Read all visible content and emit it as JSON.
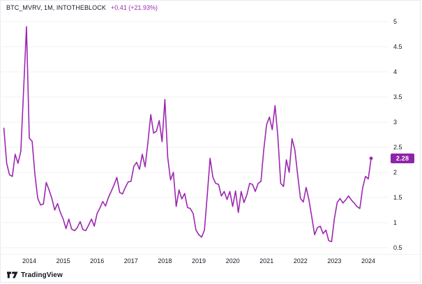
{
  "header": {
    "symbol_title": "BTC_MVRV, 1M, INTOTHEBLOCK",
    "change_text": "+0.41 (+21.93%)"
  },
  "footer": {
    "brand": "TradingView"
  },
  "colors": {
    "line": "#9c27b0",
    "badge_bg": "#8e24aa",
    "change_text": "#9c27b0",
    "axis_text": "#131722",
    "grid": "#f0f1f4",
    "border": "#e8eaef"
  },
  "y_axis": {
    "tick_labels": [
      "5",
      "4.5",
      "4",
      "3.5",
      "3",
      "2.5",
      "2",
      "1.5",
      "1",
      "0.5"
    ],
    "tick_values": [
      5,
      4.5,
      4,
      3.5,
      3,
      2.5,
      2,
      1.5,
      1,
      0.5
    ],
    "last_price_label": "2.28"
  },
  "x_axis": {
    "tick_labels": [
      "2014",
      "2015",
      "2016",
      "2017",
      "2018",
      "2019",
      "2020",
      "2021",
      "2022",
      "2023",
      "2024"
    ],
    "tick_years": [
      2014,
      2015,
      2016,
      2017,
      2018,
      2019,
      2020,
      2021,
      2022,
      2023,
      2024
    ]
  },
  "chart_data": {
    "type": "line",
    "title": "BTC_MVRV, 1M, INTOTHEBLOCK",
    "series_name": "BTC MVRV ratio, monthly",
    "x_start": "2013-04",
    "x_interval": "1 month",
    "ylabel": "MVRV ratio",
    "ylim": [
      0.5,
      5
    ],
    "grid": "horizontal-only",
    "legend_position": "none",
    "values": [
      2.88,
      2.18,
      1.95,
      1.92,
      2.36,
      2.18,
      2.42,
      3.65,
      4.9,
      2.68,
      2.62,
      1.95,
      1.48,
      1.35,
      1.37,
      1.8,
      1.65,
      1.48,
      1.25,
      1.38,
      1.2,
      1.07,
      0.88,
      1.07,
      0.87,
      0.84,
      0.9,
      1.02,
      0.86,
      0.84,
      0.95,
      1.07,
      0.93,
      1.18,
      1.29,
      1.42,
      1.33,
      1.5,
      1.62,
      1.75,
      1.9,
      1.6,
      1.57,
      1.7,
      1.81,
      1.82,
      2.12,
      2.2,
      2.06,
      2.36,
      2.11,
      2.6,
      3.15,
      2.78,
      2.82,
      3.03,
      2.61,
      3.45,
      2.3,
      1.85,
      2.0,
      1.32,
      1.65,
      1.47,
      1.58,
      1.3,
      1.28,
      1.18,
      0.85,
      0.76,
      0.71,
      0.85,
      1.55,
      2.28,
      1.9,
      1.78,
      1.76,
      1.53,
      1.62,
      1.46,
      1.62,
      1.32,
      1.63,
      1.2,
      1.62,
      1.4,
      1.55,
      1.78,
      1.76,
      1.62,
      1.78,
      1.82,
      2.45,
      2.95,
      3.1,
      2.85,
      3.33,
      2.7,
      1.78,
      1.72,
      2.25,
      2.0,
      2.67,
      2.45,
      1.95,
      1.48,
      1.41,
      1.7,
      1.45,
      1.11,
      0.76,
      0.9,
      0.93,
      0.78,
      0.85,
      0.64,
      0.62,
      1.08,
      1.4,
      1.48,
      1.39,
      1.45,
      1.53,
      1.45,
      1.39,
      1.32,
      1.28,
      1.69,
      1.92,
      1.87,
      2.28
    ],
    "last_point": {
      "date": "2024-02",
      "value": 2.28
    }
  }
}
